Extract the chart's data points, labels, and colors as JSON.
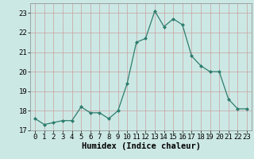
{
  "x": [
    0,
    1,
    2,
    3,
    4,
    5,
    6,
    7,
    8,
    9,
    10,
    11,
    12,
    13,
    14,
    15,
    16,
    17,
    18,
    19,
    20,
    21,
    22,
    23
  ],
  "y": [
    17.6,
    17.3,
    17.4,
    17.5,
    17.5,
    18.2,
    17.9,
    17.9,
    17.6,
    18.0,
    19.4,
    21.5,
    21.7,
    23.1,
    22.3,
    22.7,
    22.4,
    20.8,
    20.3,
    20.0,
    20.0,
    18.6,
    18.1,
    18.1
  ],
  "xlabel": "Humidex (Indice chaleur)",
  "ylim": [
    17,
    23.5
  ],
  "xlim": [
    -0.5,
    23.5
  ],
  "yticks": [
    17,
    18,
    19,
    20,
    21,
    22,
    23
  ],
  "xticks": [
    0,
    1,
    2,
    3,
    4,
    5,
    6,
    7,
    8,
    9,
    10,
    11,
    12,
    13,
    14,
    15,
    16,
    17,
    18,
    19,
    20,
    21,
    22,
    23
  ],
  "line_color": "#2e7d6e",
  "marker": "D",
  "marker_size": 2.0,
  "bg_color": "#cce8e4",
  "grid_color": "#b0c8c4",
  "xlabel_fontsize": 7.5,
  "tick_fontsize": 6.5,
  "linewidth": 0.9
}
